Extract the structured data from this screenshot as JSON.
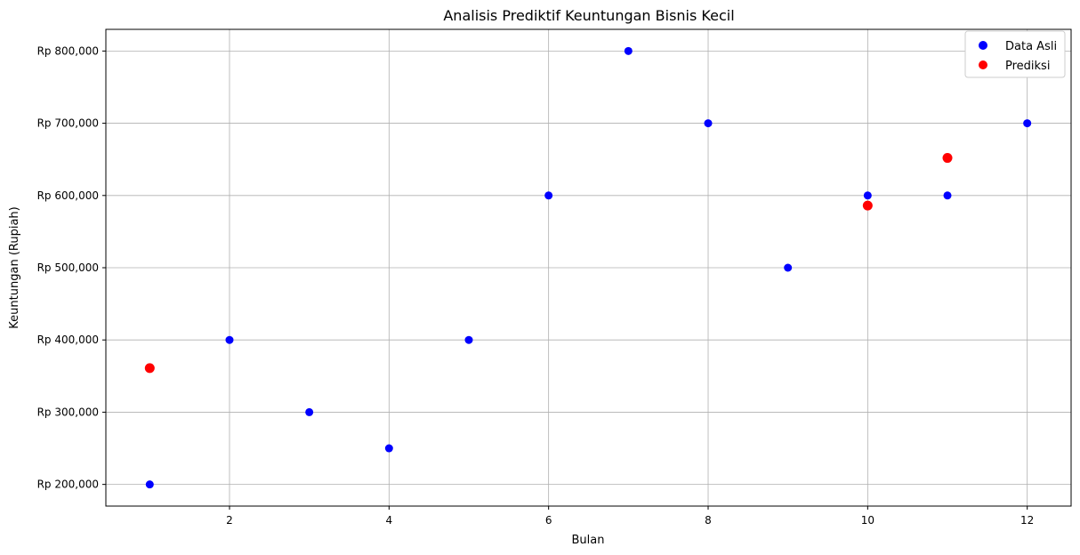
{
  "chart_data": {
    "type": "scatter",
    "title": "Analisis Prediktif Keuntungan Bisnis Kecil",
    "xlabel": "Bulan",
    "ylabel": "Keuntungan (Rupiah)",
    "xlim": [
      0.45,
      12.55
    ],
    "ylim": [
      170000,
      830000
    ],
    "xticks": [
      2,
      4,
      6,
      8,
      10,
      12
    ],
    "yticks": [
      200000,
      300000,
      400000,
      500000,
      600000,
      700000,
      800000
    ],
    "ytick_labels": [
      "Rp 200,000",
      "Rp 300,000",
      "Rp 400,000",
      "Rp 500,000",
      "Rp 600,000",
      "Rp 700,000",
      "Rp 800,000"
    ],
    "grid": true,
    "legend_position": "top-right",
    "series": [
      {
        "name": "Data Asli",
        "color": "#0000ff",
        "x": [
          1,
          2,
          3,
          4,
          5,
          6,
          7,
          8,
          9,
          10,
          11,
          12
        ],
        "y": [
          200000,
          400000,
          300000,
          250000,
          400000,
          600000,
          800000,
          700000,
          500000,
          600000,
          600000,
          700000
        ]
      },
      {
        "name": "Prediksi",
        "color": "#ff0000",
        "x": [
          1,
          10,
          11
        ],
        "y": [
          361000,
          586000,
          652000
        ]
      }
    ]
  }
}
